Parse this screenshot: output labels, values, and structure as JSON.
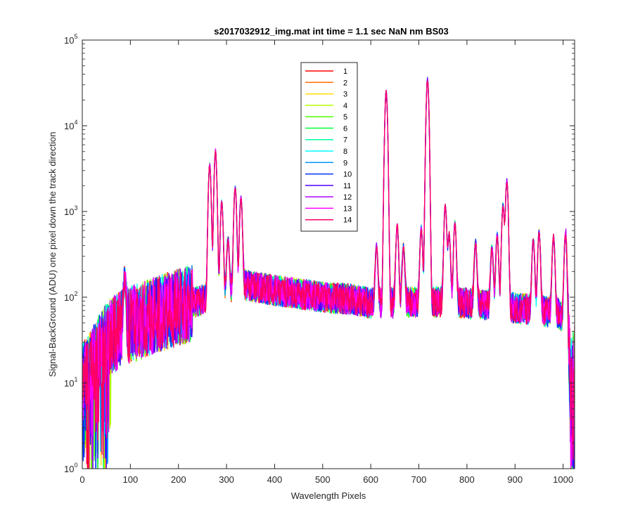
{
  "chart_data": {
    "type": "line",
    "title": "s2017032912_img.mat int time = 1.1 sec  NaN nm BS03",
    "xlabel": "Wavelength Pixels",
    "ylabel": "Signal-BackGround (ADU) one pixel down the track direction",
    "xlim": [
      0,
      1024
    ],
    "ylim": [
      1,
      100000
    ],
    "yscale": "log",
    "xticks": [
      0,
      100,
      200,
      300,
      400,
      500,
      600,
      700,
      800,
      900,
      1000
    ],
    "xtick_labels": [
      "0",
      "100",
      "200",
      "300",
      "400",
      "500",
      "600",
      "700",
      "800",
      "900",
      "1000"
    ],
    "yticks": [
      {
        "value": 1,
        "base": "10",
        "exp": "0"
      },
      {
        "value": 10,
        "base": "10",
        "exp": "1"
      },
      {
        "value": 100,
        "base": "10",
        "exp": "2"
      },
      {
        "value": 1000,
        "base": "10",
        "exp": "3"
      },
      {
        "value": 10000,
        "base": "10",
        "exp": "4"
      },
      {
        "value": 100000,
        "base": "10",
        "exp": "5"
      }
    ],
    "grid": false,
    "legend_position": "top-center",
    "baseline": {
      "x": [
        0,
        20,
        40,
        60,
        80,
        100,
        120,
        140,
        160,
        180,
        200,
        220,
        240,
        255,
        265,
        280,
        300,
        330,
        400,
        500,
        560,
        600,
        640,
        700,
        750,
        800,
        850,
        900,
        950,
        990,
        1005,
        1015,
        1024
      ],
      "y": [
        10,
        15,
        25,
        35,
        42,
        48,
        52,
        58,
        64,
        70,
        76,
        82,
        90,
        95,
        100,
        98,
        110,
        140,
        120,
        100,
        95,
        85,
        85,
        88,
        88,
        85,
        80,
        75,
        70,
        65,
        50,
        8,
        12
      ]
    },
    "peaks": [
      {
        "x": 265,
        "y": 3500
      },
      {
        "x": 277,
        "y": 5000
      },
      {
        "x": 290,
        "y": 1200
      },
      {
        "x": 303,
        "y": 350
      },
      {
        "x": 318,
        "y": 1800
      },
      {
        "x": 330,
        "y": 1300
      },
      {
        "x": 88,
        "y": 110
      },
      {
        "x": 612,
        "y": 300
      },
      {
        "x": 632,
        "y": 25000
      },
      {
        "x": 655,
        "y": 600
      },
      {
        "x": 668,
        "y": 300
      },
      {
        "x": 705,
        "y": 550
      },
      {
        "x": 718,
        "y": 35000
      },
      {
        "x": 755,
        "y": 1100
      },
      {
        "x": 763,
        "y": 450
      },
      {
        "x": 775,
        "y": 650
      },
      {
        "x": 818,
        "y": 350
      },
      {
        "x": 852,
        "y": 300
      },
      {
        "x": 863,
        "y": 450
      },
      {
        "x": 875,
        "y": 1100
      },
      {
        "x": 883,
        "y": 2200
      },
      {
        "x": 938,
        "y": 400
      },
      {
        "x": 950,
        "y": 500
      },
      {
        "x": 980,
        "y": 450
      },
      {
        "x": 1005,
        "y": 500
      }
    ],
    "series": [
      {
        "name": "1",
        "color": "#ff0000"
      },
      {
        "name": "2",
        "color": "#ff6f00"
      },
      {
        "name": "3",
        "color": "#ffdc00"
      },
      {
        "name": "4",
        "color": "#b4ff00"
      },
      {
        "name": "5",
        "color": "#50ff00"
      },
      {
        "name": "6",
        "color": "#00ff3c"
      },
      {
        "name": "7",
        "color": "#00ffa0"
      },
      {
        "name": "8",
        "color": "#00ffff"
      },
      {
        "name": "9",
        "color": "#0096ff"
      },
      {
        "name": "10",
        "color": "#0032ff"
      },
      {
        "name": "11",
        "color": "#5000ff"
      },
      {
        "name": "12",
        "color": "#b400ff"
      },
      {
        "name": "13",
        "color": "#ff00ff"
      },
      {
        "name": "14",
        "color": "#ff0064"
      }
    ]
  }
}
